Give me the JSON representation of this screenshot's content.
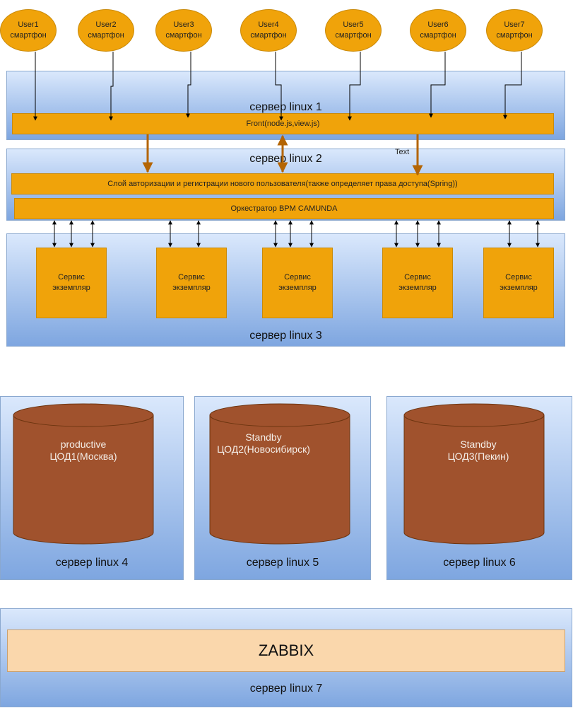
{
  "users": [
    {
      "name": "User1",
      "device": "смартфон"
    },
    {
      "name": "User2",
      "device": "смартфон"
    },
    {
      "name": "User3",
      "device": "смартфон"
    },
    {
      "name": "User4",
      "device": "смартфон"
    },
    {
      "name": "User5",
      "device": "смартфон"
    },
    {
      "name": "User6",
      "device": "смартфон"
    },
    {
      "name": "User7",
      "device": "смартфон"
    }
  ],
  "servers": {
    "s1": {
      "label": "сервер linux 1"
    },
    "s2": {
      "label": "сервер linux 2"
    },
    "s3": {
      "label": "сервер linux 3"
    },
    "s4": {
      "label": "сервер linux 4"
    },
    "s5": {
      "label": "сервер linux 5"
    },
    "s6": {
      "label": "сервер linux 6"
    },
    "s7": {
      "label": "сервер linux 7"
    }
  },
  "front": {
    "label": "Front(node.js,view.js)"
  },
  "auth_layer": {
    "label": "Слой авторизации и регистрации нового пользователя(также  определяет права доступа(Spring))"
  },
  "orchestrator": {
    "label": "Оркестратор BPM CAMUNDA"
  },
  "arrow_label": "Text",
  "services": [
    {
      "line1": "Сервис",
      "line2": "экземпляр"
    },
    {
      "line1": "Сервис",
      "line2": "экземпляр"
    },
    {
      "line1": "Сервис",
      "line2": "экземпляр"
    },
    {
      "line1": "Сервис",
      "line2": "экземпляр"
    },
    {
      "line1": "Сервис",
      "line2": "экземпляр"
    }
  ],
  "databases": [
    {
      "line1": "productive",
      "line2": "ЦОД1(Москва)"
    },
    {
      "line1": "Standby",
      "line2": "ЦОД2(Новосибирск)"
    },
    {
      "line1": "Standby",
      "line2": "ЦОД3(Пекин)"
    }
  ],
  "zabbix": {
    "label": "ZABBIX"
  },
  "colors": {
    "orange": "#f0a30a",
    "db_fill": "#a0522d",
    "server_top": "#dae8fc",
    "server_bottom": "#7ea6e0",
    "zabbix_fill": "#fad7ac",
    "brown_arrow": "#b46504"
  }
}
